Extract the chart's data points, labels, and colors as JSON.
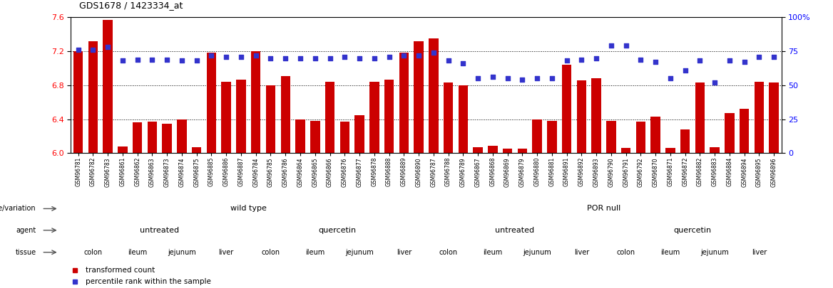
{
  "title": "GDS1678 / 1423334_at",
  "bar_color": "#cc0000",
  "dot_color": "#3333cc",
  "ylim_left": [
    6.0,
    7.6
  ],
  "ylim_right": [
    0,
    100
  ],
  "yticks_left": [
    6.0,
    6.4,
    6.8,
    7.2,
    7.6
  ],
  "yticks_right": [
    0,
    25,
    50,
    75,
    100
  ],
  "ytick_right_labels": [
    "0",
    "25",
    "50",
    "75",
    "100%"
  ],
  "samples": [
    "GSM96781",
    "GSM96782",
    "GSM96783",
    "GSM96861",
    "GSM96862",
    "GSM96863",
    "GSM96873",
    "GSM96874",
    "GSM96875",
    "GSM96885",
    "GSM96886",
    "GSM96887",
    "GSM96784",
    "GSM96785",
    "GSM96786",
    "GSM96864",
    "GSM96865",
    "GSM96866",
    "GSM96876",
    "GSM96877",
    "GSM96878",
    "GSM96888",
    "GSM96889",
    "GSM96890",
    "GSM96787",
    "GSM96788",
    "GSM96789",
    "GSM96867",
    "GSM96868",
    "GSM96869",
    "GSM96879",
    "GSM96880",
    "GSM96881",
    "GSM96891",
    "GSM96892",
    "GSM96893",
    "GSM96790",
    "GSM96791",
    "GSM96792",
    "GSM96870",
    "GSM96871",
    "GSM96872",
    "GSM96882",
    "GSM96883",
    "GSM96884",
    "GSM96894",
    "GSM96895",
    "GSM96896"
  ],
  "bar_values": [
    7.2,
    7.32,
    7.57,
    6.08,
    6.36,
    6.37,
    6.35,
    6.4,
    6.07,
    7.18,
    6.84,
    6.87,
    7.2,
    6.8,
    6.91,
    6.4,
    6.38,
    6.84,
    6.37,
    6.45,
    6.84,
    6.87,
    7.18,
    7.32,
    7.35,
    6.83,
    6.8,
    6.07,
    6.09,
    6.05,
    6.05,
    6.4,
    6.38,
    7.04,
    6.86,
    6.88,
    6.38,
    6.06,
    6.37,
    6.43,
    6.06,
    6.28,
    6.83,
    6.07,
    6.47,
    6.52,
    6.84,
    6.83
  ],
  "dot_values": [
    76,
    76,
    78,
    68,
    69,
    69,
    69,
    68,
    68,
    72,
    71,
    71,
    72,
    70,
    70,
    70,
    70,
    70,
    71,
    70,
    70,
    71,
    72,
    72,
    74,
    68,
    66,
    55,
    56,
    55,
    54,
    55,
    55,
    68,
    69,
    70,
    79,
    79,
    69,
    67,
    55,
    61,
    68,
    52,
    68,
    67,
    71,
    71
  ],
  "genotype_groups": [
    {
      "label": "wild type",
      "start": 0,
      "end": 24,
      "color": "#bbeeaa"
    },
    {
      "label": "POR null",
      "start": 24,
      "end": 48,
      "color": "#44cc44"
    }
  ],
  "agent_groups": [
    {
      "label": "untreated",
      "start": 0,
      "end": 12,
      "color": "#bbbbee"
    },
    {
      "label": "quercetin",
      "start": 12,
      "end": 24,
      "color": "#8888dd"
    },
    {
      "label": "untreated",
      "start": 24,
      "end": 36,
      "color": "#bbbbee"
    },
    {
      "label": "quercetin",
      "start": 36,
      "end": 48,
      "color": "#8888dd"
    }
  ],
  "tissue_groups": [
    {
      "label": "colon",
      "start": 0,
      "end": 3,
      "color": "#ffbbbb"
    },
    {
      "label": "ileum",
      "start": 3,
      "end": 6,
      "color": "#ffcccc"
    },
    {
      "label": "jejunum",
      "start": 6,
      "end": 9,
      "color": "#ffbbbb"
    },
    {
      "label": "liver",
      "start": 9,
      "end": 12,
      "color": "#ee8888"
    },
    {
      "label": "colon",
      "start": 12,
      "end": 15,
      "color": "#ffbbbb"
    },
    {
      "label": "ileum",
      "start": 15,
      "end": 18,
      "color": "#ffcccc"
    },
    {
      "label": "jejunum",
      "start": 18,
      "end": 21,
      "color": "#ffbbbb"
    },
    {
      "label": "liver",
      "start": 21,
      "end": 24,
      "color": "#ee8888"
    },
    {
      "label": "colon",
      "start": 24,
      "end": 27,
      "color": "#ffbbbb"
    },
    {
      "label": "ileum",
      "start": 27,
      "end": 30,
      "color": "#ffcccc"
    },
    {
      "label": "jejunum",
      "start": 30,
      "end": 33,
      "color": "#ffbbbb"
    },
    {
      "label": "liver",
      "start": 33,
      "end": 36,
      "color": "#ee8888"
    },
    {
      "label": "colon",
      "start": 36,
      "end": 39,
      "color": "#ffbbbb"
    },
    {
      "label": "ileum",
      "start": 39,
      "end": 42,
      "color": "#ffcccc"
    },
    {
      "label": "jejunum",
      "start": 42,
      "end": 45,
      "color": "#ffbbbb"
    },
    {
      "label": "liver",
      "start": 45,
      "end": 48,
      "color": "#ee8888"
    }
  ],
  "row_labels": [
    "genotype/variation",
    "agent",
    "tissue"
  ],
  "legend_items": [
    {
      "label": "transformed count",
      "color": "#cc0000"
    },
    {
      "label": "percentile rank within the sample",
      "color": "#3333cc"
    }
  ],
  "background_color": "#ffffff"
}
